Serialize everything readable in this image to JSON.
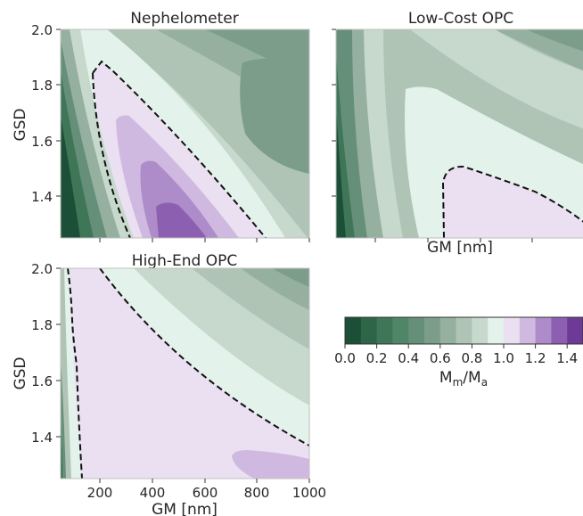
{
  "figure": {
    "colorbar": {
      "ticks": [
        0.0,
        0.2,
        0.4,
        0.6,
        0.8,
        1.0,
        1.2,
        1.4
      ],
      "tick_labels": [
        "0.0",
        "0.2",
        "0.4",
        "0.6",
        "0.8",
        "1.0",
        "1.2",
        "1.4"
      ],
      "label_main": "M",
      "label_sub1": "m",
      "label_slash": "/M",
      "label_sub2": "a",
      "levels": [
        0.0,
        0.1,
        0.2,
        0.3,
        0.4,
        0.5,
        0.6,
        0.7,
        0.8,
        0.9,
        1.0,
        1.1,
        1.2,
        1.3,
        1.4,
        1.5
      ],
      "colors": [
        "#1b4f37",
        "#2c6547",
        "#3e7657",
        "#4f8667",
        "#658f79",
        "#7d9d8b",
        "#96b09f",
        "#afc4b5",
        "#c7d9cc",
        "#e3f2ea",
        "#ebe0f2",
        "#d0b9e0",
        "#ae8cc9",
        "#8d5fb1",
        "#6e3a98"
      ]
    }
  },
  "chart_data": [
    {
      "type": "heatmap",
      "subtype": "filled-contour",
      "title": "Nephelometer",
      "xlabel": "",
      "ylabel": "GSD",
      "xlim": [
        50,
        1000
      ],
      "ylim": [
        1.25,
        2.0
      ],
      "x_ticks": [
        200,
        400,
        600,
        800,
        1000
      ],
      "x_tick_labels": [
        "",
        "",
        "",
        "",
        ""
      ],
      "y_ticks": [
        1.4,
        1.6,
        1.8,
        2.0
      ],
      "y_tick_labels": [
        "1.4",
        "1.6",
        "1.8",
        "2.0"
      ],
      "contour_dashed_level": 1.0,
      "value_range": [
        0.0,
        1.45
      ],
      "regions": [
        {
          "value": 0.0,
          "location": "lower-left corner (GM < 120 nm)"
        },
        {
          "value": 1.45,
          "location": "peak near GM 500 nm, GSD 1.25"
        },
        {
          "value": 0.65,
          "location": "upper right near GM 850 nm, GSD 1.7"
        }
      ]
    },
    {
      "type": "heatmap",
      "subtype": "filled-contour",
      "title": "Low-Cost OPC",
      "xlabel": "GM [nm]",
      "ylabel": "",
      "xlim": [
        50,
        1000
      ],
      "ylim": [
        1.25,
        2.0
      ],
      "x_ticks": [
        200,
        400,
        600,
        800,
        1000
      ],
      "x_tick_labels": [
        "",
        "",
        "",
        "",
        ""
      ],
      "y_ticks": [
        1.4,
        1.6,
        1.8,
        2.0
      ],
      "y_tick_labels": [
        "",
        "",
        "",
        ""
      ],
      "contour_dashed_level": 1.0,
      "value_range": [
        0.0,
        1.1
      ],
      "regions": [
        {
          "value": 0.0,
          "location": "lower-left corner (GM < 150 nm)"
        },
        {
          "value": 1.05,
          "location": "lower right (GM > 450 nm, GSD < 1.5)"
        },
        {
          "value": 0.65,
          "location": "upper right corner"
        }
      ]
    },
    {
      "type": "heatmap",
      "subtype": "filled-contour",
      "title": "High-End OPC",
      "xlabel": "GM [nm]",
      "ylabel": "GSD",
      "xlim": [
        50,
        1000
      ],
      "ylim": [
        1.25,
        2.0
      ],
      "x_ticks": [
        200,
        400,
        600,
        800,
        1000
      ],
      "x_tick_labels": [
        "200",
        "400",
        "600",
        "800",
        "1000"
      ],
      "y_ticks": [
        1.4,
        1.6,
        1.8,
        2.0
      ],
      "y_tick_labels": [
        "1.4",
        "1.6",
        "1.8",
        "2.0"
      ],
      "contour_dashed_level": 1.0,
      "value_range": [
        0.3,
        1.25
      ],
      "regions": [
        {
          "value": 0.35,
          "location": "far left edge (GM < 80 nm)"
        },
        {
          "value": 1.05,
          "location": "large central region"
        },
        {
          "value": 1.2,
          "location": "lower right near GM 850 nm, GSD 1.3"
        },
        {
          "value": 0.65,
          "location": "upper right corner"
        }
      ]
    }
  ]
}
